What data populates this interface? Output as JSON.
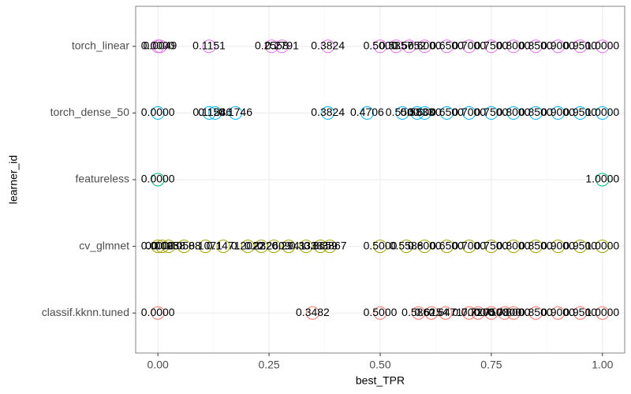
{
  "chart_data": {
    "type": "scatter",
    "x_label": "best_TPR",
    "y_label": "learner_id",
    "categories": [
      "classif.kknn.tuned",
      "cv_glmnet",
      "featureless",
      "torch_dense_50",
      "torch_linear"
    ],
    "xlim": [
      -0.05,
      1.05
    ],
    "xticks": [
      {
        "value": 0,
        "label": "0.00"
      },
      {
        "value": 0.25,
        "label": "0.25"
      },
      {
        "value": 0.5,
        "label": "0.50"
      },
      {
        "value": 0.75,
        "label": "0.75"
      },
      {
        "value": 1,
        "label": "1.00"
      }
    ],
    "grid": true,
    "series": [
      {
        "color": "#F8766D",
        "values": [
          0,
          0.3482,
          0.5,
          0.5862,
          0.6154,
          0.6471,
          0.7,
          0.72,
          0.75,
          0.78,
          0.8,
          0.85,
          0.9,
          0.95,
          1
        ],
        "value_labels": [
          "0.0000",
          "0.3482",
          "0.5000",
          "0.5862",
          "0.6154",
          "0.6471",
          "0.7000",
          "0.7200",
          "0.7500",
          "0.7800",
          "0.8000",
          "0.8500",
          "0.9000",
          "0.9500",
          "1.0000"
        ]
      },
      {
        "color": "#A3A500",
        "values": [
          0,
          0.0095,
          0.0238,
          0.0588,
          0.1071,
          0.1471,
          0.2022,
          0.2326,
          0.2609,
          0.2941,
          0.3333,
          0.3659,
          0.3867,
          0.5,
          0.5588,
          0.6,
          0.65,
          0.7,
          0.75,
          0.8,
          0.85,
          0.9,
          0.95,
          1
        ],
        "value_labels": [
          "0.0000",
          "0.0095",
          "0.0238",
          "0.0588",
          "0.1071",
          "0.1471",
          "0.2022",
          "0.2326",
          "0.2609",
          "0.2941",
          "0.3333",
          "0.3659",
          "0.3867",
          "0.5000",
          "0.5588",
          "0.6000",
          "0.6500",
          "0.7000",
          "0.7500",
          "0.8000",
          "0.8500",
          "0.9000",
          "0.9500",
          "1.0000"
        ]
      },
      {
        "color": "#00BF7D",
        "values": [
          0,
          1
        ],
        "value_labels": [
          "0.0000",
          "1.0000"
        ]
      },
      {
        "color": "#00B0F6",
        "values": [
          0,
          0.1154,
          0.1286,
          0.1746,
          0.3824,
          0.4706,
          0.55,
          0.5833,
          0.6,
          0.65,
          0.7,
          0.75,
          0.8,
          0.85,
          0.9,
          0.95,
          1
        ],
        "value_labels": [
          "0.0000",
          "0.1154",
          "0.1286",
          "0.1746",
          "0.3824",
          "0.4706",
          "0.5500",
          "0.5833",
          "0.6000",
          "0.6500",
          "0.7000",
          "0.7500",
          "0.8000",
          "0.8500",
          "0.9000",
          "0.9500",
          "1.0000"
        ]
      },
      {
        "color": "#E76BF3",
        "values": [
          0,
          0.0049,
          0.1151,
          0.2558,
          0.2791,
          0.3824,
          0.5,
          0.5357,
          0.5652,
          0.6,
          0.65,
          0.7,
          0.75,
          0.8,
          0.85,
          0.9,
          0.95,
          1
        ],
        "value_labels": [
          "0.0000",
          "0.0049",
          "0.1151",
          "0.2558",
          "0.2791",
          "0.3824",
          "0.5000",
          "0.5357",
          "0.5652",
          "0.6000",
          "0.6500",
          "0.7000",
          "0.7500",
          "0.8000",
          "0.8500",
          "0.9000",
          "0.9500",
          "1.0000"
        ]
      }
    ]
  }
}
